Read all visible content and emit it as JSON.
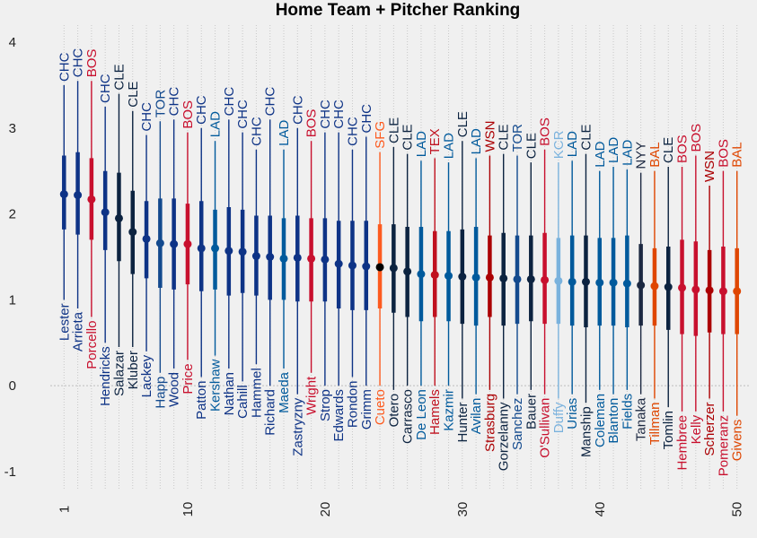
{
  "chart_data": {
    "type": "scatter",
    "title": "Home Team + Pitcher Ranking",
    "xlabel": "",
    "ylabel": "",
    "xlim": [
      0,
      51
    ],
    "ylim": [
      -1.2,
      4.2
    ],
    "xticks": [
      1,
      10,
      20,
      30,
      40,
      50
    ],
    "yticks": [
      -1,
      0,
      1,
      2,
      3,
      4
    ],
    "grid": true,
    "reference_line": 0,
    "team_colors": {
      "CHC": "#0e3386",
      "BOS": "#c8102e",
      "CLE": "#0c2340",
      "TOR": "#134a8e",
      "LAD": "#005a9c",
      "SFG": "#000000",
      "TEX": "#c0111f",
      "WSN": "#ab0003",
      "KCR": "#7ab2dd",
      "NYY": "#1c2841",
      "BAL": "#df4601"
    },
    "label_colors": {
      "SFG": "#fd5a1e",
      "BAL": "#df4601"
    },
    "points": [
      {
        "rank": 1,
        "pitcher": "Lester",
        "team": "CHC",
        "mean": 2.23,
        "lo": 1.0,
        "hi": 3.5,
        "q1": 1.82,
        "q3": 2.68
      },
      {
        "rank": 2,
        "pitcher": "Arrieta",
        "team": "CHC",
        "mean": 2.22,
        "lo": 0.9,
        "hi": 3.55,
        "q1": 1.76,
        "q3": 2.72
      },
      {
        "rank": 3,
        "pitcher": "Porcello",
        "team": "BOS",
        "mean": 2.17,
        "lo": 0.8,
        "hi": 3.55,
        "q1": 1.7,
        "q3": 2.65
      },
      {
        "rank": 4,
        "pitcher": "Hendricks",
        "team": "CHC",
        "mean": 2.02,
        "lo": 0.5,
        "hi": 3.25,
        "q1": 1.58,
        "q3": 2.5
      },
      {
        "rank": 5,
        "pitcher": "Salazar",
        "team": "CLE",
        "mean": 1.95,
        "lo": 0.45,
        "hi": 3.4,
        "q1": 1.45,
        "q3": 2.48
      },
      {
        "rank": 6,
        "pitcher": "Kluber",
        "team": "CLE",
        "mean": 1.79,
        "lo": 0.45,
        "hi": 3.2,
        "q1": 1.3,
        "q3": 2.27
      },
      {
        "rank": 7,
        "pitcher": "Lackey",
        "team": "CHC",
        "mean": 1.71,
        "lo": 0.4,
        "hi": 2.92,
        "q1": 1.25,
        "q3": 2.15
      },
      {
        "rank": 8,
        "pitcher": "Happ",
        "team": "TOR",
        "mean": 1.66,
        "lo": 0.15,
        "hi": 3.08,
        "q1": 1.14,
        "q3": 2.18
      },
      {
        "rank": 9,
        "pitcher": "Wood",
        "team": "CHC",
        "mean": 1.65,
        "lo": 0.2,
        "hi": 3.1,
        "q1": 1.12,
        "q3": 2.18
      },
      {
        "rank": 10,
        "pitcher": "Price",
        "team": "BOS",
        "mean": 1.65,
        "lo": 0.3,
        "hi": 2.95,
        "q1": 1.18,
        "q3": 2.12
      },
      {
        "rank": 11,
        "pitcher": "Patton",
        "team": "CHC",
        "mean": 1.6,
        "lo": 0.1,
        "hi": 3.0,
        "q1": 1.1,
        "q3": 2.15
      },
      {
        "rank": 12,
        "pitcher": "Kershaw",
        "team": "LAD",
        "mean": 1.6,
        "lo": 0.35,
        "hi": 2.85,
        "q1": 1.12,
        "q3": 2.05
      },
      {
        "rank": 13,
        "pitcher": "Nathan",
        "team": "CHC",
        "mean": 1.57,
        "lo": 0.2,
        "hi": 3.1,
        "q1": 1.05,
        "q3": 2.08
      },
      {
        "rank": 14,
        "pitcher": "Cahill",
        "team": "CHC",
        "mean": 1.56,
        "lo": 0.05,
        "hi": 2.95,
        "q1": 1.08,
        "q3": 2.05
      },
      {
        "rank": 15,
        "pitcher": "Hammel",
        "team": "CHC",
        "mean": 1.51,
        "lo": 0.25,
        "hi": 2.75,
        "q1": 1.05,
        "q3": 1.98
      },
      {
        "rank": 16,
        "pitcher": "Richard",
        "team": "CHC",
        "mean": 1.5,
        "lo": 0.0,
        "hi": 3.1,
        "q1": 1.0,
        "q3": 1.98
      },
      {
        "rank": 17,
        "pitcher": "Maeda",
        "team": "LAD",
        "mean": 1.48,
        "lo": 0.2,
        "hi": 2.75,
        "q1": 1.0,
        "q3": 1.95
      },
      {
        "rank": 18,
        "pitcher": "Zastryzny",
        "team": "CHC",
        "mean": 1.49,
        "lo": -0.1,
        "hi": 3.0,
        "q1": 0.98,
        "q3": 1.98
      },
      {
        "rank": 19,
        "pitcher": "Wright",
        "team": "BOS",
        "mean": 1.48,
        "lo": 0.15,
        "hi": 2.85,
        "q1": 0.98,
        "q3": 1.95
      },
      {
        "rank": 20,
        "pitcher": "Strop",
        "team": "CHC",
        "mean": 1.47,
        "lo": 0.0,
        "hi": 2.95,
        "q1": 0.98,
        "q3": 1.95
      },
      {
        "rank": 21,
        "pitcher": "Edwards",
        "team": "CHC",
        "mean": 1.42,
        "lo": 0.0,
        "hi": 2.95,
        "q1": 0.9,
        "q3": 1.92
      },
      {
        "rank": 22,
        "pitcher": "Rondon",
        "team": "CHC",
        "mean": 1.4,
        "lo": 0.1,
        "hi": 2.75,
        "q1": 0.88,
        "q3": 1.92
      },
      {
        "rank": 23,
        "pitcher": "Grimm",
        "team": "CHC",
        "mean": 1.39,
        "lo": 0.0,
        "hi": 2.9,
        "q1": 0.88,
        "q3": 1.92
      },
      {
        "rank": 24,
        "pitcher": "Cueto",
        "team": "SFG",
        "mean": 1.38,
        "lo": 0.0,
        "hi": 2.72,
        "q1": 0.9,
        "q3": 1.88
      },
      {
        "rank": 25,
        "pitcher": "Otero",
        "team": "CLE",
        "mean": 1.37,
        "lo": -0.05,
        "hi": 2.78,
        "q1": 0.85,
        "q3": 1.88
      },
      {
        "rank": 26,
        "pitcher": "Carrasco",
        "team": "CLE",
        "mean": 1.33,
        "lo": 0.0,
        "hi": 2.7,
        "q1": 0.8,
        "q3": 1.85
      },
      {
        "rank": 27,
        "pitcher": "De Leon",
        "team": "LAD",
        "mean": 1.3,
        "lo": 0.0,
        "hi": 2.62,
        "q1": 0.75,
        "q3": 1.85
      },
      {
        "rank": 28,
        "pitcher": "Hamels",
        "team": "TEX",
        "mean": 1.29,
        "lo": 0.0,
        "hi": 2.65,
        "q1": 0.8,
        "q3": 1.8
      },
      {
        "rank": 29,
        "pitcher": "Kazmir",
        "team": "LAD",
        "mean": 1.28,
        "lo": 0.0,
        "hi": 2.6,
        "q1": 0.75,
        "q3": 1.8
      },
      {
        "rank": 30,
        "pitcher": "Hunter",
        "team": "CLE",
        "mean": 1.27,
        "lo": -0.15,
        "hi": 2.85,
        "q1": 0.72,
        "q3": 1.82
      },
      {
        "rank": 31,
        "pitcher": "Avilan",
        "team": "LAD",
        "mean": 1.26,
        "lo": -0.1,
        "hi": 2.65,
        "q1": 0.7,
        "q3": 1.85
      },
      {
        "rank": 32,
        "pitcher": "Strasburg",
        "team": "WSN",
        "mean": 1.26,
        "lo": -0.05,
        "hi": 2.68,
        "q1": 0.8,
        "q3": 1.75
      },
      {
        "rank": 33,
        "pitcher": "Gorzelanny",
        "team": "CLE",
        "mean": 1.25,
        "lo": -0.15,
        "hi": 2.7,
        "q1": 0.7,
        "q3": 1.78
      },
      {
        "rank": 34,
        "pitcher": "Sanchez",
        "team": "TOR",
        "mean": 1.24,
        "lo": -0.1,
        "hi": 2.68,
        "q1": 0.72,
        "q3": 1.75
      },
      {
        "rank": 35,
        "pitcher": "Bauer",
        "team": "CLE",
        "mean": 1.24,
        "lo": -0.05,
        "hi": 2.6,
        "q1": 0.75,
        "q3": 1.75
      },
      {
        "rank": 36,
        "pitcher": "O'Sullivan",
        "team": "BOS",
        "mean": 1.23,
        "lo": -0.1,
        "hi": 2.75,
        "q1": 0.72,
        "q3": 1.78
      },
      {
        "rank": 37,
        "pitcher": "Duffy",
        "team": "KCR",
        "mean": 1.22,
        "lo": -0.15,
        "hi": 2.6,
        "q1": 0.72,
        "q3": 1.72
      },
      {
        "rank": 38,
        "pitcher": "Urias",
        "team": "LAD",
        "mean": 1.21,
        "lo": -0.1,
        "hi": 2.62,
        "q1": 0.7,
        "q3": 1.75
      },
      {
        "rank": 39,
        "pitcher": "Manship",
        "team": "CLE",
        "mean": 1.21,
        "lo": -0.2,
        "hi": 2.7,
        "q1": 0.68,
        "q3": 1.75
      },
      {
        "rank": 40,
        "pitcher": "Coleman",
        "team": "LAD",
        "mean": 1.2,
        "lo": -0.05,
        "hi": 2.5,
        "q1": 0.7,
        "q3": 1.72
      },
      {
        "rank": 41,
        "pitcher": "Blanton",
        "team": "LAD",
        "mean": 1.2,
        "lo": -0.1,
        "hi": 2.55,
        "q1": 0.7,
        "q3": 1.72
      },
      {
        "rank": 42,
        "pitcher": "Fields",
        "team": "LAD",
        "mean": 1.19,
        "lo": -0.05,
        "hi": 2.52,
        "q1": 0.68,
        "q3": 1.75
      },
      {
        "rank": 43,
        "pitcher": "Tanaka",
        "team": "NYY",
        "mean": 1.17,
        "lo": -0.1,
        "hi": 2.48,
        "q1": 0.7,
        "q3": 1.65
      },
      {
        "rank": 44,
        "pitcher": "Tillman",
        "team": "BAL",
        "mean": 1.16,
        "lo": -0.15,
        "hi": 2.5,
        "q1": 0.7,
        "q3": 1.6
      },
      {
        "rank": 45,
        "pitcher": "Tomlin",
        "team": "CLE",
        "mean": 1.15,
        "lo": -0.25,
        "hi": 2.55,
        "q1": 0.65,
        "q3": 1.62
      },
      {
        "rank": 46,
        "pitcher": "Hembree",
        "team": "BOS",
        "mean": 1.14,
        "lo": -0.3,
        "hi": 2.55,
        "q1": 0.6,
        "q3": 1.7
      },
      {
        "rank": 47,
        "pitcher": "Kelly",
        "team": "BOS",
        "mean": 1.12,
        "lo": -0.3,
        "hi": 2.68,
        "q1": 0.58,
        "q3": 1.68
      },
      {
        "rank": 48,
        "pitcher": "Scherzer",
        "team": "WSN",
        "mean": 1.11,
        "lo": -0.15,
        "hi": 2.33,
        "q1": 0.62,
        "q3": 1.58
      },
      {
        "rank": 49,
        "pitcher": "Pomeranz",
        "team": "BOS",
        "mean": 1.1,
        "lo": -0.3,
        "hi": 2.5,
        "q1": 0.6,
        "q3": 1.62
      },
      {
        "rank": 50,
        "pitcher": "Givens",
        "team": "BAL",
        "mean": 1.1,
        "lo": -0.35,
        "hi": 2.5,
        "q1": 0.6,
        "q3": 1.6
      }
    ]
  }
}
